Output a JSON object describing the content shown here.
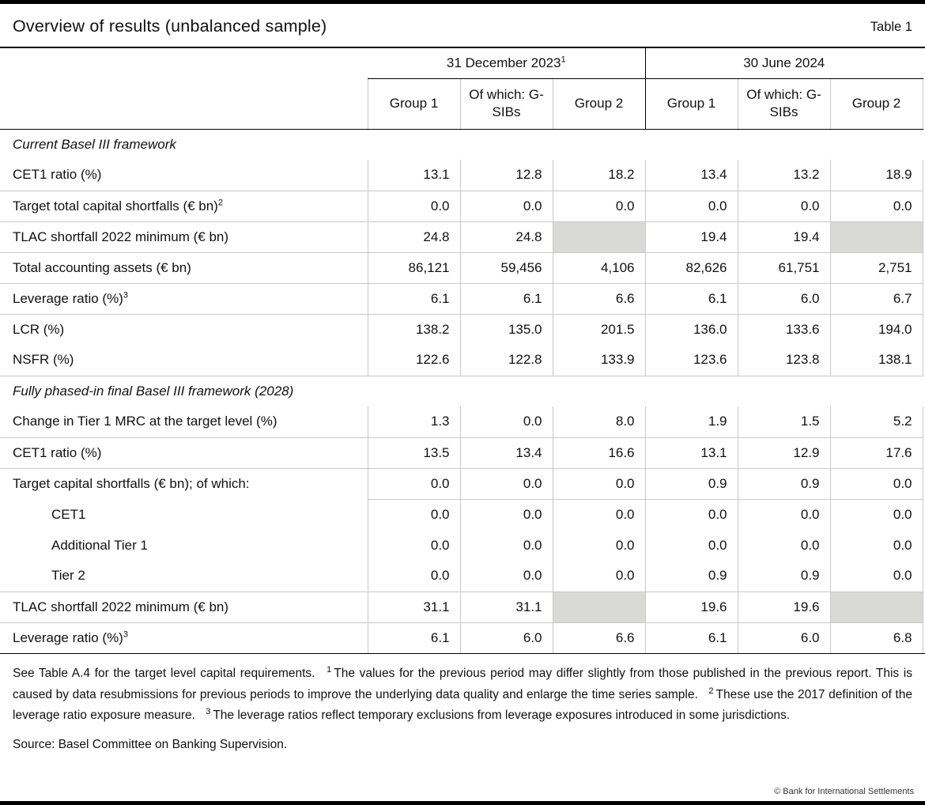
{
  "colors": {
    "bar_black": "#000000",
    "grid_grey": "#c9c9c9",
    "shaded_cell": "#d9d9d6"
  },
  "header": {
    "title": "Overview of results (unbalanced sample)",
    "table_label": "Table 1"
  },
  "table": {
    "column_groups": [
      {
        "label": "31 December 2023",
        "sup": "1"
      },
      {
        "label": "30 June 2024",
        "sup": ""
      }
    ],
    "columns": [
      "Group 1",
      "Of which: G-SIBs",
      "Group 2",
      "Group 1",
      "Of which: G-SIBs",
      "Group 2"
    ],
    "rows": [
      {
        "type": "section",
        "label": "Current Basel III framework"
      },
      {
        "type": "data",
        "label": "CET1 ratio (%)",
        "sup": "",
        "values": [
          "13.1",
          "12.8",
          "18.2",
          "13.4",
          "13.2",
          "18.9"
        ],
        "border": "full"
      },
      {
        "type": "data",
        "label": "Target total capital shortfalls (€ bn)",
        "sup": "2",
        "values": [
          "0.0",
          "0.0",
          "0.0",
          "0.0",
          "0.0",
          "0.0"
        ],
        "border": "full"
      },
      {
        "type": "data",
        "label": "TLAC shortfall 2022 minimum (€ bn)",
        "sup": "",
        "values": [
          "24.8",
          "24.8",
          "",
          "19.4",
          "19.4",
          ""
        ],
        "shaded_cols": [
          2,
          5
        ],
        "border": "full"
      },
      {
        "type": "data",
        "label": "Total accounting assets (€ bn)",
        "sup": "",
        "values": [
          "86,121",
          "59,456",
          "4,106",
          "82,626",
          "61,751",
          "2,751"
        ],
        "border": "full"
      },
      {
        "type": "data",
        "label": "Leverage ratio (%)",
        "sup": "3",
        "values": [
          "6.1",
          "6.1",
          "6.6",
          "6.1",
          "6.0",
          "6.7"
        ],
        "border": "full"
      },
      {
        "type": "data",
        "label": "LCR (%)",
        "sup": "",
        "values": [
          "138.2",
          "135.0",
          "201.5",
          "136.0",
          "133.6",
          "194.0"
        ],
        "border": "none"
      },
      {
        "type": "data",
        "label": "NSFR (%)",
        "sup": "",
        "values": [
          "122.6",
          "122.8",
          "133.9",
          "123.6",
          "123.8",
          "138.1"
        ],
        "border": "full"
      },
      {
        "type": "section",
        "label": "Fully phased-in final Basel III framework (2028)"
      },
      {
        "type": "data",
        "label": "Change in Tier 1 MRC at the target level (%)",
        "sup": "",
        "values": [
          "1.3",
          "0.0",
          "8.0",
          "1.9",
          "1.5",
          "5.2"
        ],
        "border": "full"
      },
      {
        "type": "data",
        "label": "CET1 ratio (%)",
        "sup": "",
        "values": [
          "13.5",
          "13.4",
          "16.6",
          "13.1",
          "12.9",
          "17.6"
        ],
        "border": "full"
      },
      {
        "type": "data",
        "label": "Target capital shortfalls (€ bn); of which:",
        "sup": "",
        "values": [
          "0.0",
          "0.0",
          "0.0",
          "0.9",
          "0.9",
          "0.0"
        ],
        "border": "partial"
      },
      {
        "type": "data",
        "label": "CET1",
        "indent": true,
        "sup": "",
        "values": [
          "0.0",
          "0.0",
          "0.0",
          "0.0",
          "0.0",
          "0.0"
        ],
        "border": "none"
      },
      {
        "type": "data",
        "label": "Additional Tier 1",
        "indent": true,
        "sup": "",
        "values": [
          "0.0",
          "0.0",
          "0.0",
          "0.0",
          "0.0",
          "0.0"
        ],
        "border": "none"
      },
      {
        "type": "data",
        "label": "Tier 2",
        "indent": true,
        "sup": "",
        "values": [
          "0.0",
          "0.0",
          "0.0",
          "0.9",
          "0.9",
          "0.0"
        ],
        "border": "full"
      },
      {
        "type": "data",
        "label": "TLAC shortfall 2022 minimum (€ bn)",
        "sup": "",
        "values": [
          "31.1",
          "31.1",
          "",
          "19.6",
          "19.6",
          ""
        ],
        "shaded_cols": [
          2,
          5
        ],
        "border": "full"
      },
      {
        "type": "data",
        "label": "Leverage ratio (%)",
        "sup": "3",
        "values": [
          "6.1",
          "6.0",
          "6.6",
          "6.1",
          "6.0",
          "6.8"
        ],
        "border": "none"
      }
    ]
  },
  "footnotes": {
    "segments": [
      {
        "sup": "",
        "text": "See Table A.4 for the target level capital requirements."
      },
      {
        "sup": "1",
        "text": "The values for the previous period may differ slightly from those published in the previous report. This is caused by data resubmissions for previous periods to improve the underlying data quality and enlarge the time series sample."
      },
      {
        "sup": "2",
        "text": "These use the 2017 definition of the leverage ratio exposure measure."
      },
      {
        "sup": "3",
        "text": "The leverage ratios reflect temporary exclusions from leverage exposures introduced in some jurisdictions."
      }
    ]
  },
  "footer": {
    "source": "Source: Basel Committee on Banking Supervision.",
    "copyright": "© Bank for International Settlements"
  }
}
